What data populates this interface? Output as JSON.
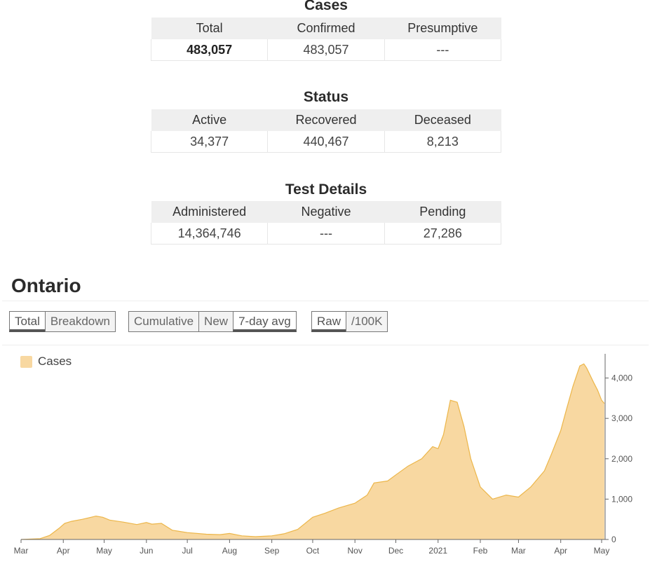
{
  "cases": {
    "title": "Cases",
    "headers": [
      "Total",
      "Confirmed",
      "Presumptive"
    ],
    "values": [
      "483,057",
      "483,057",
      "---"
    ]
  },
  "status": {
    "title": "Status",
    "headers": [
      "Active",
      "Recovered",
      "Deceased"
    ],
    "values": [
      "34,377",
      "440,467",
      "8,213"
    ]
  },
  "tests": {
    "title": "Test Details",
    "headers": [
      "Administered",
      "Negative",
      "Pending"
    ],
    "values": [
      "14,364,746",
      "---",
      "27,286"
    ]
  },
  "region": {
    "title": "Ontario"
  },
  "controls": {
    "group1": [
      "Total",
      "Breakdown"
    ],
    "group2": [
      "Cumulative",
      "New",
      "7-day avg"
    ],
    "group3": [
      "Raw",
      "/100K"
    ],
    "active": [
      "Total",
      "7-day avg",
      "Raw"
    ]
  },
  "colors": {
    "fill": "#f8d8a1",
    "stroke": "#ecb64a",
    "axis": "#666666"
  },
  "chart_data": {
    "type": "area",
    "legend": [
      "Cases"
    ],
    "legend_position": "top-left",
    "y_axis_side": "right",
    "ylim": [
      0,
      4600
    ],
    "yticks": [
      0,
      1000,
      2000,
      3000,
      4000
    ],
    "ytick_labels": [
      "0",
      "1,000",
      "2,000",
      "3,000",
      "4,000"
    ],
    "xticks": [
      {
        "label": "Mar",
        "date": "2020-03-01"
      },
      {
        "label": "Apr",
        "date": "2020-04-01"
      },
      {
        "label": "May",
        "date": "2020-05-01"
      },
      {
        "label": "Jun",
        "date": "2020-06-01"
      },
      {
        "label": "Jul",
        "date": "2020-07-01"
      },
      {
        "label": "Aug",
        "date": "2020-08-01"
      },
      {
        "label": "Sep",
        "date": "2020-09-01"
      },
      {
        "label": "Oct",
        "date": "2020-10-01"
      },
      {
        "label": "Nov",
        "date": "2020-11-01"
      },
      {
        "label": "Dec",
        "date": "2020-12-01"
      },
      {
        "label": "2021",
        "date": "2021-01-01"
      },
      {
        "label": "Feb",
        "date": "2021-02-01"
      },
      {
        "label": "Mar",
        "date": "2021-03-01"
      },
      {
        "label": "Apr",
        "date": "2021-04-01"
      },
      {
        "label": "May",
        "date": "2021-05-01"
      }
    ],
    "x": [
      "2020-03-01",
      "2020-03-15",
      "2020-03-22",
      "2020-03-29",
      "2020-04-02",
      "2020-04-07",
      "2020-04-15",
      "2020-04-25",
      "2020-04-30",
      "2020-05-05",
      "2020-05-15",
      "2020-05-25",
      "2020-06-01",
      "2020-06-05",
      "2020-06-12",
      "2020-06-20",
      "2020-07-01",
      "2020-07-15",
      "2020-07-25",
      "2020-08-01",
      "2020-08-10",
      "2020-08-20",
      "2020-09-01",
      "2020-09-10",
      "2020-09-20",
      "2020-10-01",
      "2020-10-10",
      "2020-10-20",
      "2020-11-01",
      "2020-11-10",
      "2020-11-15",
      "2020-11-25",
      "2020-12-01",
      "2020-12-10",
      "2020-12-20",
      "2020-12-28",
      "2021-01-01",
      "2021-01-05",
      "2021-01-10",
      "2021-01-15",
      "2021-01-20",
      "2021-01-25",
      "2021-02-01",
      "2021-02-10",
      "2021-02-20",
      "2021-03-01",
      "2021-03-10",
      "2021-03-20",
      "2021-03-25",
      "2021-04-01",
      "2021-04-05",
      "2021-04-10",
      "2021-04-15",
      "2021-04-18",
      "2021-04-20",
      "2021-04-25",
      "2021-04-28",
      "2021-05-01",
      "2021-05-03"
    ],
    "series": [
      {
        "name": "Cases",
        "values": [
          0,
          20,
          100,
          280,
          400,
          450,
          500,
          580,
          550,
          480,
          430,
          370,
          420,
          380,
          400,
          230,
          170,
          130,
          120,
          150,
          90,
          70,
          90,
          140,
          250,
          550,
          650,
          780,
          900,
          1100,
          1400,
          1450,
          1600,
          1820,
          2000,
          2300,
          2250,
          2600,
          3450,
          3400,
          2800,
          2000,
          1300,
          1000,
          1100,
          1050,
          1300,
          1700,
          2100,
          2700,
          3200,
          3800,
          4300,
          4350,
          4250,
          3900,
          3700,
          3450,
          3370
        ]
      }
    ]
  }
}
